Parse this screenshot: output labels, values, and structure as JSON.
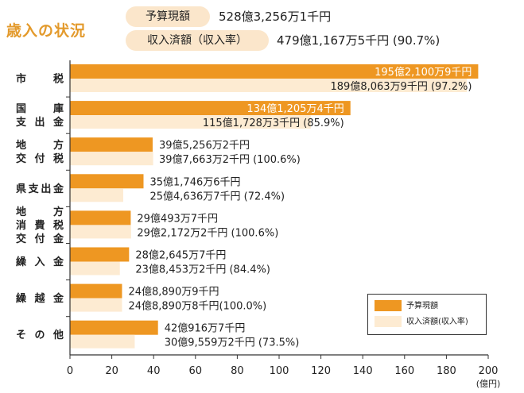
{
  "header": {
    "title": "歳入の状況",
    "budget_label": "予算現額",
    "budget_value": "528億3,256万1千円",
    "income_label": "収入済額（収入率）",
    "income_value": "479億1,167万5千円 (90.7%)"
  },
  "colors": {
    "budget": "#ee9722",
    "income": "#fdebd2",
    "accent": "#e39a2c",
    "axis": "#333333"
  },
  "chart_data": {
    "type": "bar",
    "orientation": "horizontal",
    "unit": "億円",
    "xlim": [
      0,
      200
    ],
    "xticks": [
      0,
      20,
      40,
      60,
      80,
      100,
      120,
      140,
      160,
      180,
      200
    ],
    "xlabel": "(億円)",
    "categories": [
      {
        "lines": [
          "市　税"
        ]
      },
      {
        "lines": [
          "国　庫",
          "支出金"
        ]
      },
      {
        "lines": [
          "地　方",
          "交付税"
        ]
      },
      {
        "lines": [
          "県支出金"
        ]
      },
      {
        "lines": [
          "地　方",
          "消費税",
          "交付金"
        ]
      },
      {
        "lines": [
          "繰入金"
        ]
      },
      {
        "lines": [
          "繰越金"
        ]
      },
      {
        "lines": [
          "そ の 他"
        ]
      }
    ],
    "series": [
      {
        "name": "予算現額",
        "values": [
          195.21,
          134.12,
          39.53,
          35.17,
          29.05,
          28.26,
          24.89,
          42.09
        ],
        "labels": [
          "195億2,100万9千円",
          "134億1,205万4千円",
          "39億5,256万2千円",
          "35億1,746万6千円",
          "29億493万7千円",
          "28億2,645万7千円",
          "24億8,890万9千円",
          "42億916万7千円"
        ]
      },
      {
        "name": "収入済額(収入率)",
        "values": [
          189.81,
          115.17,
          39.77,
          25.46,
          29.22,
          23.85,
          24.89,
          30.96
        ],
        "labels": [
          "189億8,063万9千円 (97.2%)",
          "115億1,728万3千円 (85.9%)",
          "39億7,663万2千円 (100.6%)",
          "25億4,636万7千円 (72.4%)",
          "29億2,172万2千円 (100.6%)",
          "23億8,453万2千円 (84.4%)",
          "24億8,890万8千円(100.0%)",
          "30億9,559万2千円 (73.5%)"
        ]
      }
    ]
  }
}
